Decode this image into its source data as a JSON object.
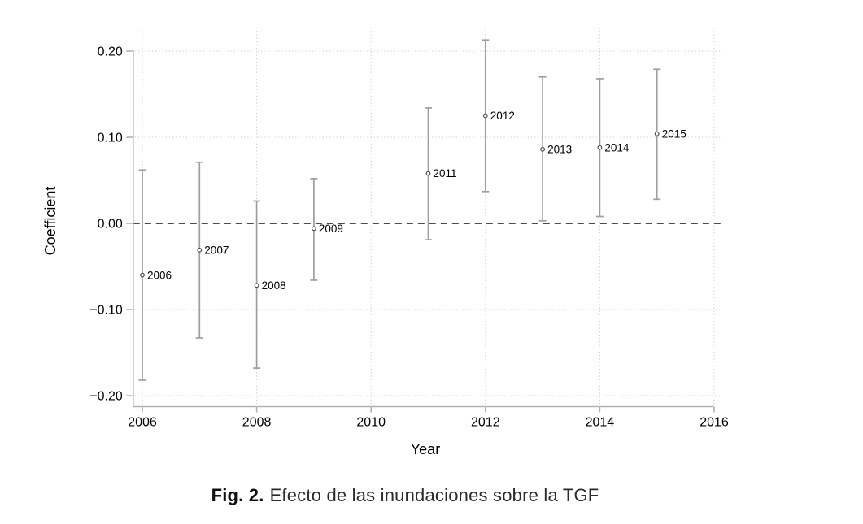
{
  "figure": {
    "caption_label": "Fig. 2.",
    "caption_text": "Efecto de las inundaciones sobre la TGF"
  },
  "chart_data": {
    "type": "scatter",
    "subtype": "coefficient-plot-with-confidence-intervals",
    "title": "",
    "xlabel": "Year",
    "ylabel": "Coefficient",
    "x_ticks": [
      2006,
      2008,
      2010,
      2012,
      2014,
      2016
    ],
    "x_tick_labels": [
      "2006",
      "2008",
      "2010",
      "2012",
      "2014",
      "2016"
    ],
    "y_ticks": [
      0.2,
      0.1,
      0.0,
      -0.1,
      -0.2
    ],
    "y_tick_labels": [
      "0.20",
      "0.10",
      "0.00",
      "−0.10",
      "−0.20"
    ],
    "xlim": [
      2005.8,
      2016.15
    ],
    "ylim": [
      -0.212,
      0.227
    ],
    "grid": "dotted gridlines at x and y ticks",
    "legend": "none",
    "zero_line": {
      "value": 0.0,
      "style": "dashed",
      "color": "#111111"
    },
    "series": [
      {
        "name": "flood-effect-coefficients",
        "points": [
          {
            "year": 2006,
            "label": "2006",
            "estimate": -0.06,
            "ci_low": -0.182,
            "ci_high": 0.062
          },
          {
            "year": 2007,
            "label": "2007",
            "estimate": -0.031,
            "ci_low": -0.133,
            "ci_high": 0.071
          },
          {
            "year": 2008,
            "label": "2008",
            "estimate": -0.072,
            "ci_low": -0.168,
            "ci_high": 0.026
          },
          {
            "year": 2009,
            "label": "2009",
            "estimate": -0.006,
            "ci_low": -0.066,
            "ci_high": 0.052
          },
          {
            "year": 2011,
            "label": "2011",
            "estimate": 0.058,
            "ci_low": -0.019,
            "ci_high": 0.134
          },
          {
            "year": 2012,
            "label": "2012",
            "estimate": 0.125,
            "ci_low": 0.037,
            "ci_high": 0.213
          },
          {
            "year": 2013,
            "label": "2013",
            "estimate": 0.086,
            "ci_low": 0.003,
            "ci_high": 0.17
          },
          {
            "year": 2014,
            "label": "2014",
            "estimate": 0.088,
            "ci_low": 0.008,
            "ci_high": 0.168
          },
          {
            "year": 2015,
            "label": "2015",
            "estimate": 0.104,
            "ci_low": 0.028,
            "ci_high": 0.179
          }
        ]
      }
    ],
    "colors": {
      "error_bar": "#9e9e9e",
      "marker_stroke": "#4a4a4a",
      "marker_fill": "#ffffff",
      "axis": "#b3b3b3",
      "grid_dots": "#c9c9c9",
      "tick_text": "#000000",
      "zero_line": "#111111"
    }
  }
}
